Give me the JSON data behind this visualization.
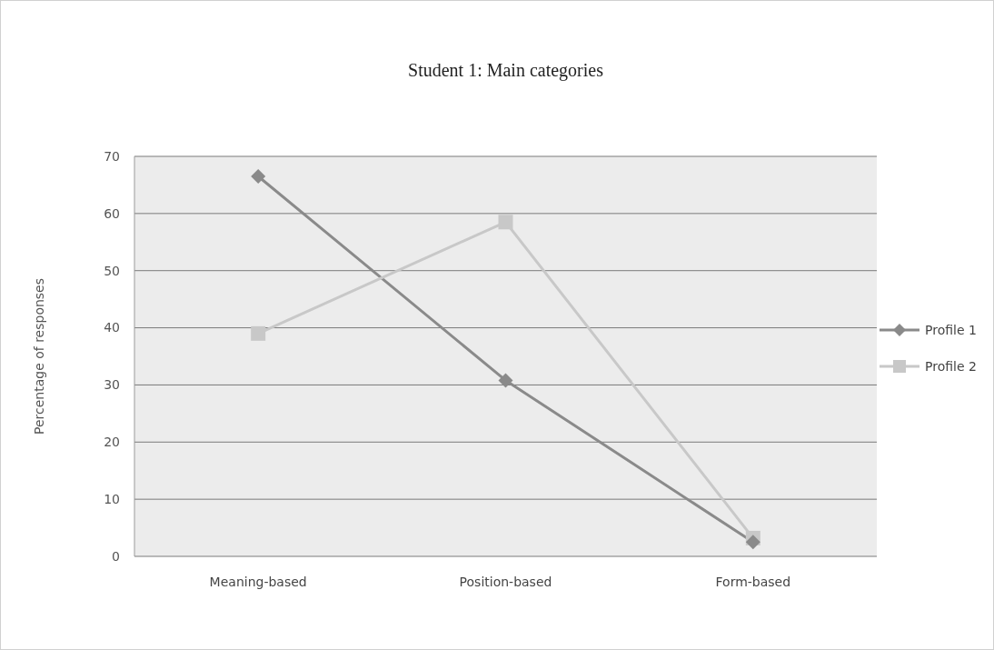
{
  "chart_data": {
    "type": "line",
    "title": "Student 1: Main categories",
    "ylabel": "Percentage of responses",
    "categories": [
      "Meaning-based",
      "Position-based",
      "Form-based"
    ],
    "series": [
      {
        "name": "Profile 1",
        "color": "#8a8a8a",
        "marker": "diamond",
        "values": [
          66.5,
          30.8,
          2.5
        ]
      },
      {
        "name": "Profile 2",
        "color": "#c8c8c8",
        "marker": "square",
        "values": [
          39,
          58.5,
          3.2
        ]
      }
    ],
    "ylim": [
      0,
      70
    ],
    "yticks": [
      0,
      10,
      20,
      30,
      40,
      50,
      60,
      70
    ],
    "grid": "y",
    "legend": "right"
  }
}
